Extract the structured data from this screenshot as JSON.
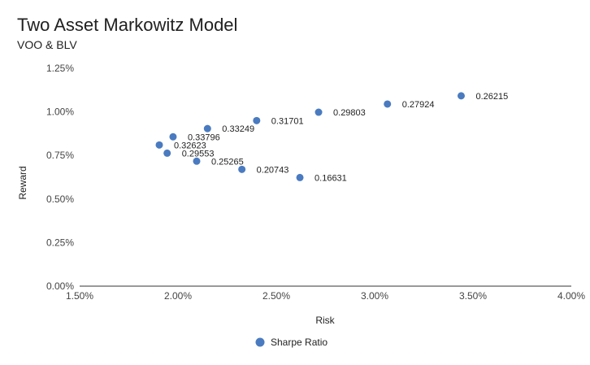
{
  "chart_data": {
    "type": "scatter",
    "title": "Two Asset Markowitz Model",
    "subtitle": "VOO & BLV",
    "xlabel": "Risk",
    "ylabel": "Reward",
    "xlim": [
      1.5,
      4.0
    ],
    "ylim": [
      0.0,
      1.25
    ],
    "x_ticks": [
      "1.50%",
      "2.00%",
      "2.50%",
      "3.00%",
      "3.50%",
      "4.00%"
    ],
    "x_tick_values": [
      1.5,
      2.0,
      2.5,
      3.0,
      3.5,
      4.0
    ],
    "y_ticks": [
      "0.00%",
      "0.25%",
      "0.50%",
      "0.75%",
      "1.00%",
      "1.25%"
    ],
    "y_tick_values": [
      0.0,
      0.25,
      0.5,
      0.75,
      1.0,
      1.25
    ],
    "grid": false,
    "legend_position": "bottom",
    "color": "#4a7bc0",
    "series": [
      {
        "name": "Sharpe Ratio",
        "points": [
          {
            "x": 3.44,
            "y": 1.092,
            "label": "0.26215"
          },
          {
            "x": 3.065,
            "y": 1.045,
            "label": "0.27924"
          },
          {
            "x": 2.715,
            "y": 0.998,
            "label": "0.29803"
          },
          {
            "x": 2.4,
            "y": 0.95,
            "label": "0.31701"
          },
          {
            "x": 2.15,
            "y": 0.904,
            "label": "0.33249"
          },
          {
            "x": 1.975,
            "y": 0.857,
            "label": "0.33796"
          },
          {
            "x": 1.905,
            "y": 0.81,
            "label": "0.32623"
          },
          {
            "x": 1.945,
            "y": 0.763,
            "label": "0.29553"
          },
          {
            "x": 2.095,
            "y": 0.717,
            "label": "0.25265"
          },
          {
            "x": 2.325,
            "y": 0.67,
            "label": "0.20743"
          },
          {
            "x": 2.62,
            "y": 0.623,
            "label": "0.16631"
          }
        ]
      }
    ]
  }
}
